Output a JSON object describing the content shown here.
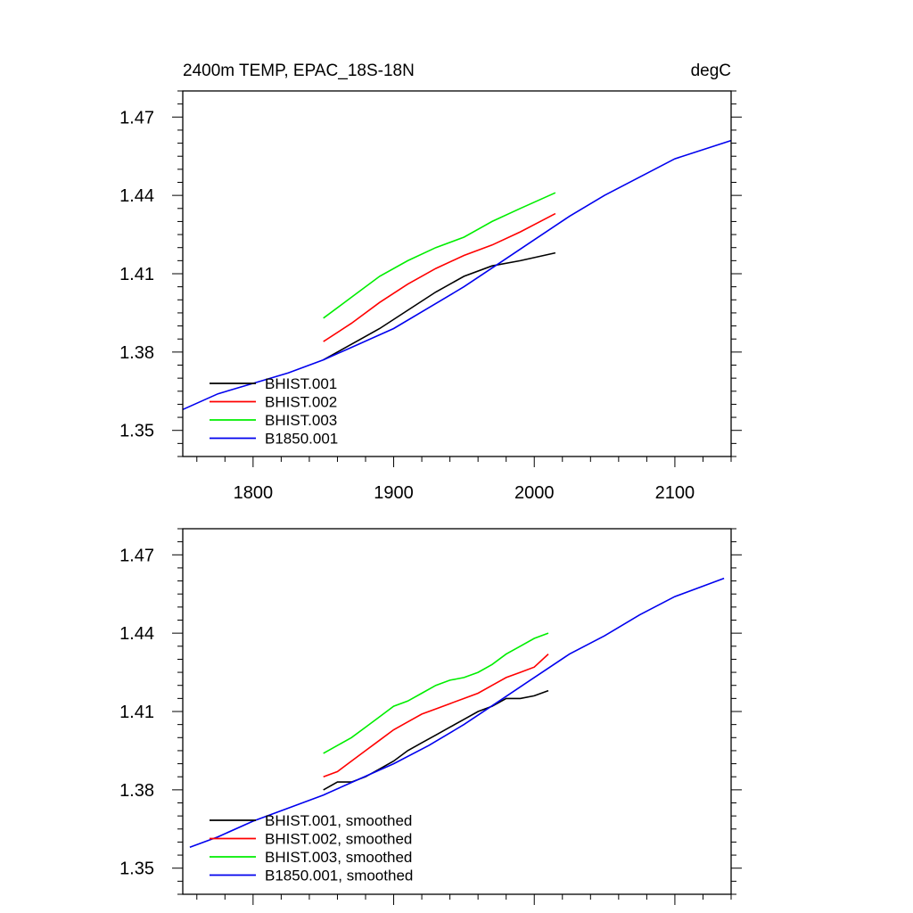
{
  "chart_data": [
    {
      "type": "line",
      "title": "2400m TEMP, EPAC_18S-18N",
      "units": "degC",
      "xlim": [
        1750,
        2140
      ],
      "ylim": [
        1.34,
        1.48
      ],
      "xticks": [
        1800,
        1900,
        2000,
        2100
      ],
      "xtick_labels": [
        "1800",
        "1900",
        "2000",
        "2100"
      ],
      "yticks": [
        1.35,
        1.38,
        1.41,
        1.44,
        1.47
      ],
      "ytick_labels": [
        "1.35",
        "1.38",
        "1.41",
        "1.44",
        "1.47"
      ],
      "legend_position": "bottom-left",
      "series": [
        {
          "name": "BHIST.001",
          "color": "#000000",
          "x": [
            1850,
            1870,
            1890,
            1910,
            1930,
            1950,
            1970,
            1990,
            2015
          ],
          "y": [
            1.377,
            1.383,
            1.389,
            1.396,
            1.403,
            1.409,
            1.413,
            1.415,
            1.418
          ]
        },
        {
          "name": "BHIST.002",
          "color": "#ff0000",
          "x": [
            1850,
            1870,
            1890,
            1910,
            1930,
            1950,
            1970,
            1990,
            2015
          ],
          "y": [
            1.384,
            1.391,
            1.399,
            1.406,
            1.412,
            1.417,
            1.421,
            1.426,
            1.433
          ]
        },
        {
          "name": "BHIST.003",
          "color": "#00ee00",
          "x": [
            1850,
            1870,
            1890,
            1910,
            1930,
            1950,
            1970,
            1990,
            2015
          ],
          "y": [
            1.393,
            1.401,
            1.409,
            1.415,
            1.42,
            1.424,
            1.43,
            1.435,
            1.441
          ]
        },
        {
          "name": "B1850.001",
          "color": "#0000ee",
          "x": [
            1750,
            1775,
            1800,
            1825,
            1850,
            1875,
            1900,
            1925,
            1950,
            1975,
            2000,
            2025,
            2050,
            2075,
            2100,
            2140
          ],
          "y": [
            1.358,
            1.364,
            1.368,
            1.372,
            1.377,
            1.383,
            1.389,
            1.397,
            1.405,
            1.414,
            1.423,
            1.432,
            1.44,
            1.447,
            1.454,
            1.461
          ]
        }
      ]
    },
    {
      "type": "line",
      "xlim": [
        1750,
        2140
      ],
      "ylim": [
        1.34,
        1.48
      ],
      "xticks": [
        1800,
        1900,
        2000,
        2100
      ],
      "yticks": [
        1.35,
        1.38,
        1.41,
        1.44,
        1.47
      ],
      "ytick_labels": [
        "1.35",
        "1.38",
        "1.41",
        "1.44",
        "1.47"
      ],
      "legend_position": "bottom-left",
      "series": [
        {
          "name": "BHIST.001, smoothed",
          "color": "#000000",
          "x": [
            1850,
            1860,
            1870,
            1880,
            1890,
            1900,
            1910,
            1920,
            1930,
            1940,
            1950,
            1960,
            1970,
            1980,
            1990,
            2000,
            2010
          ],
          "y": [
            1.38,
            1.383,
            1.383,
            1.385,
            1.388,
            1.391,
            1.395,
            1.398,
            1.401,
            1.404,
            1.407,
            1.41,
            1.412,
            1.415,
            1.415,
            1.416,
            1.418
          ]
        },
        {
          "name": "BHIST.002, smoothed",
          "color": "#ff0000",
          "x": [
            1850,
            1860,
            1870,
            1880,
            1890,
            1900,
            1910,
            1920,
            1930,
            1940,
            1950,
            1960,
            1970,
            1980,
            1990,
            2000,
            2010
          ],
          "y": [
            1.385,
            1.387,
            1.391,
            1.395,
            1.399,
            1.403,
            1.406,
            1.409,
            1.411,
            1.413,
            1.415,
            1.417,
            1.42,
            1.423,
            1.425,
            1.427,
            1.432
          ]
        },
        {
          "name": "BHIST.003, smoothed",
          "color": "#00ee00",
          "x": [
            1850,
            1860,
            1870,
            1880,
            1890,
            1900,
            1910,
            1920,
            1930,
            1940,
            1950,
            1960,
            1970,
            1980,
            1990,
            2000,
            2010
          ],
          "y": [
            1.394,
            1.397,
            1.4,
            1.404,
            1.408,
            1.412,
            1.414,
            1.417,
            1.42,
            1.422,
            1.423,
            1.425,
            1.428,
            1.432,
            1.435,
            1.438,
            1.44
          ]
        },
        {
          "name": "B1850.001, smoothed",
          "color": "#0000ee",
          "x": [
            1755,
            1775,
            1800,
            1825,
            1850,
            1875,
            1900,
            1925,
            1950,
            1975,
            2000,
            2025,
            2050,
            2075,
            2100,
            2125,
            2135
          ],
          "y": [
            1.358,
            1.362,
            1.368,
            1.373,
            1.378,
            1.384,
            1.39,
            1.397,
            1.405,
            1.414,
            1.423,
            1.432,
            1.439,
            1.447,
            1.454,
            1.459,
            1.461
          ]
        }
      ]
    }
  ]
}
